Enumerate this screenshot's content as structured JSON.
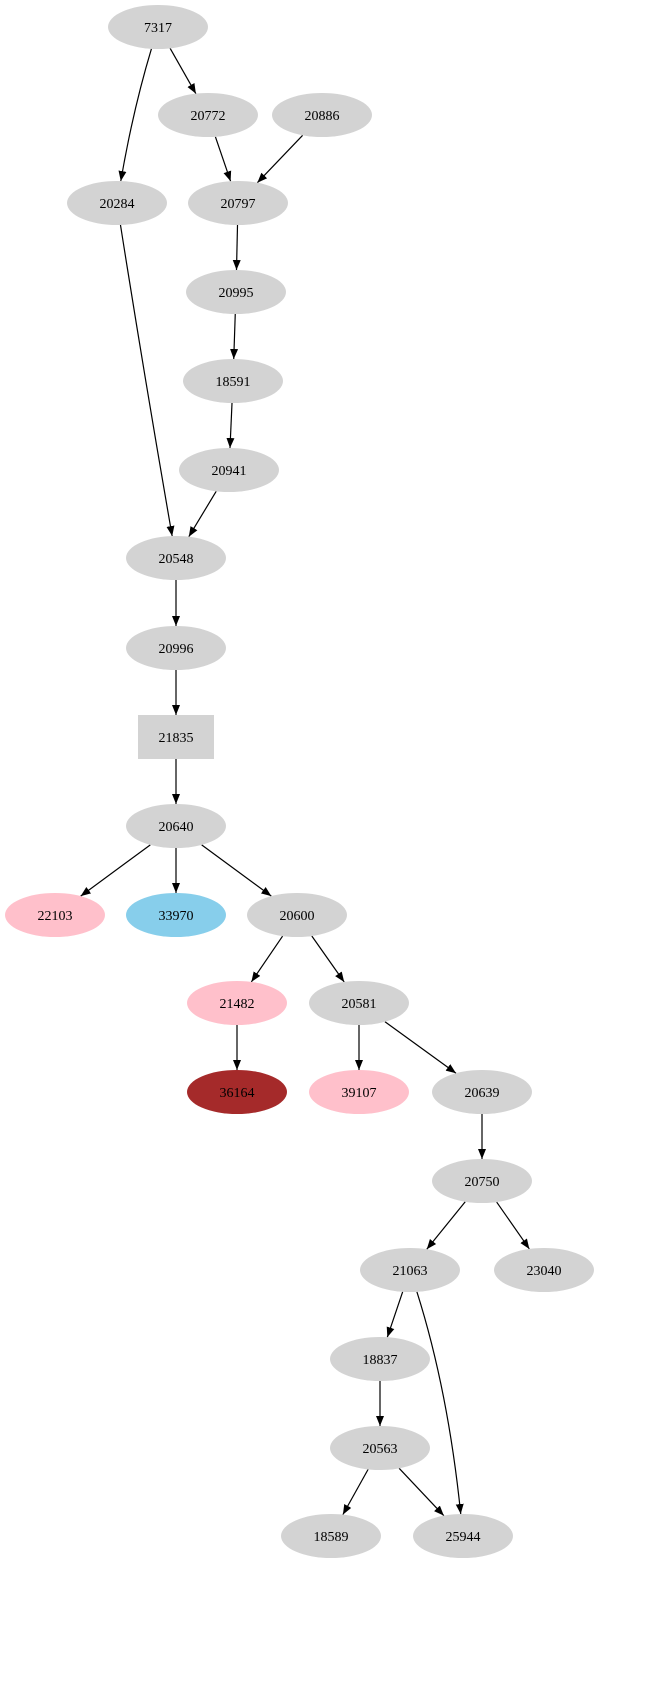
{
  "graph": {
    "nodes": [
      {
        "id": "7317",
        "label": "7317",
        "fill": "#d3d3d3",
        "shape": "ellipse"
      },
      {
        "id": "20772",
        "label": "20772",
        "fill": "#d3d3d3",
        "shape": "ellipse"
      },
      {
        "id": "20886",
        "label": "20886",
        "fill": "#d3d3d3",
        "shape": "ellipse"
      },
      {
        "id": "20284",
        "label": "20284",
        "fill": "#d3d3d3",
        "shape": "ellipse"
      },
      {
        "id": "20797",
        "label": "20797",
        "fill": "#d3d3d3",
        "shape": "ellipse"
      },
      {
        "id": "20995",
        "label": "20995",
        "fill": "#d3d3d3",
        "shape": "ellipse"
      },
      {
        "id": "18591",
        "label": "18591",
        "fill": "#d3d3d3",
        "shape": "ellipse"
      },
      {
        "id": "20941",
        "label": "20941",
        "fill": "#d3d3d3",
        "shape": "ellipse"
      },
      {
        "id": "20548",
        "label": "20548",
        "fill": "#d3d3d3",
        "shape": "ellipse"
      },
      {
        "id": "20996",
        "label": "20996",
        "fill": "#d3d3d3",
        "shape": "ellipse"
      },
      {
        "id": "21835",
        "label": "21835",
        "fill": "#d3d3d3",
        "shape": "box"
      },
      {
        "id": "20640",
        "label": "20640",
        "fill": "#d3d3d3",
        "shape": "ellipse"
      },
      {
        "id": "22103",
        "label": "22103",
        "fill": "#ffc0cb",
        "shape": "ellipse"
      },
      {
        "id": "33970",
        "label": "33970",
        "fill": "#87ceeb",
        "shape": "ellipse"
      },
      {
        "id": "20600",
        "label": "20600",
        "fill": "#d3d3d3",
        "shape": "ellipse"
      },
      {
        "id": "21482",
        "label": "21482",
        "fill": "#ffc0cb",
        "shape": "ellipse"
      },
      {
        "id": "20581",
        "label": "20581",
        "fill": "#d3d3d3",
        "shape": "ellipse"
      },
      {
        "id": "36164",
        "label": "36164",
        "fill": "#a52a2a",
        "shape": "ellipse"
      },
      {
        "id": "39107",
        "label": "39107",
        "fill": "#ffc0cb",
        "shape": "ellipse"
      },
      {
        "id": "20639",
        "label": "20639",
        "fill": "#d3d3d3",
        "shape": "ellipse"
      },
      {
        "id": "20750",
        "label": "20750",
        "fill": "#d3d3d3",
        "shape": "ellipse"
      },
      {
        "id": "21063",
        "label": "21063",
        "fill": "#d3d3d3",
        "shape": "ellipse"
      },
      {
        "id": "23040",
        "label": "23040",
        "fill": "#d3d3d3",
        "shape": "ellipse"
      },
      {
        "id": "18837",
        "label": "18837",
        "fill": "#d3d3d3",
        "shape": "ellipse"
      },
      {
        "id": "20563",
        "label": "20563",
        "fill": "#d3d3d3",
        "shape": "ellipse"
      },
      {
        "id": "18589",
        "label": "18589",
        "fill": "#d3d3d3",
        "shape": "ellipse"
      },
      {
        "id": "25944",
        "label": "25944",
        "fill": "#d3d3d3",
        "shape": "ellipse"
      }
    ],
    "edges": [
      [
        "7317",
        "20772"
      ],
      [
        "7317",
        "20284"
      ],
      [
        "20772",
        "20797"
      ],
      [
        "20886",
        "20797"
      ],
      [
        "20797",
        "20995"
      ],
      [
        "20995",
        "18591"
      ],
      [
        "18591",
        "20941"
      ],
      [
        "20941",
        "20548"
      ],
      [
        "20284",
        "20548"
      ],
      [
        "20548",
        "20996"
      ],
      [
        "20996",
        "21835"
      ],
      [
        "21835",
        "20640"
      ],
      [
        "20640",
        "22103"
      ],
      [
        "20640",
        "33970"
      ],
      [
        "20640",
        "20600"
      ],
      [
        "20600",
        "21482"
      ],
      [
        "20600",
        "20581"
      ],
      [
        "21482",
        "36164"
      ],
      [
        "20581",
        "39107"
      ],
      [
        "20581",
        "20639"
      ],
      [
        "20639",
        "20750"
      ],
      [
        "20750",
        "21063"
      ],
      [
        "20750",
        "23040"
      ],
      [
        "21063",
        "18837"
      ],
      [
        "21063",
        "25944"
      ],
      [
        "18837",
        "20563"
      ],
      [
        "20563",
        "18589"
      ],
      [
        "20563",
        "25944"
      ]
    ]
  }
}
